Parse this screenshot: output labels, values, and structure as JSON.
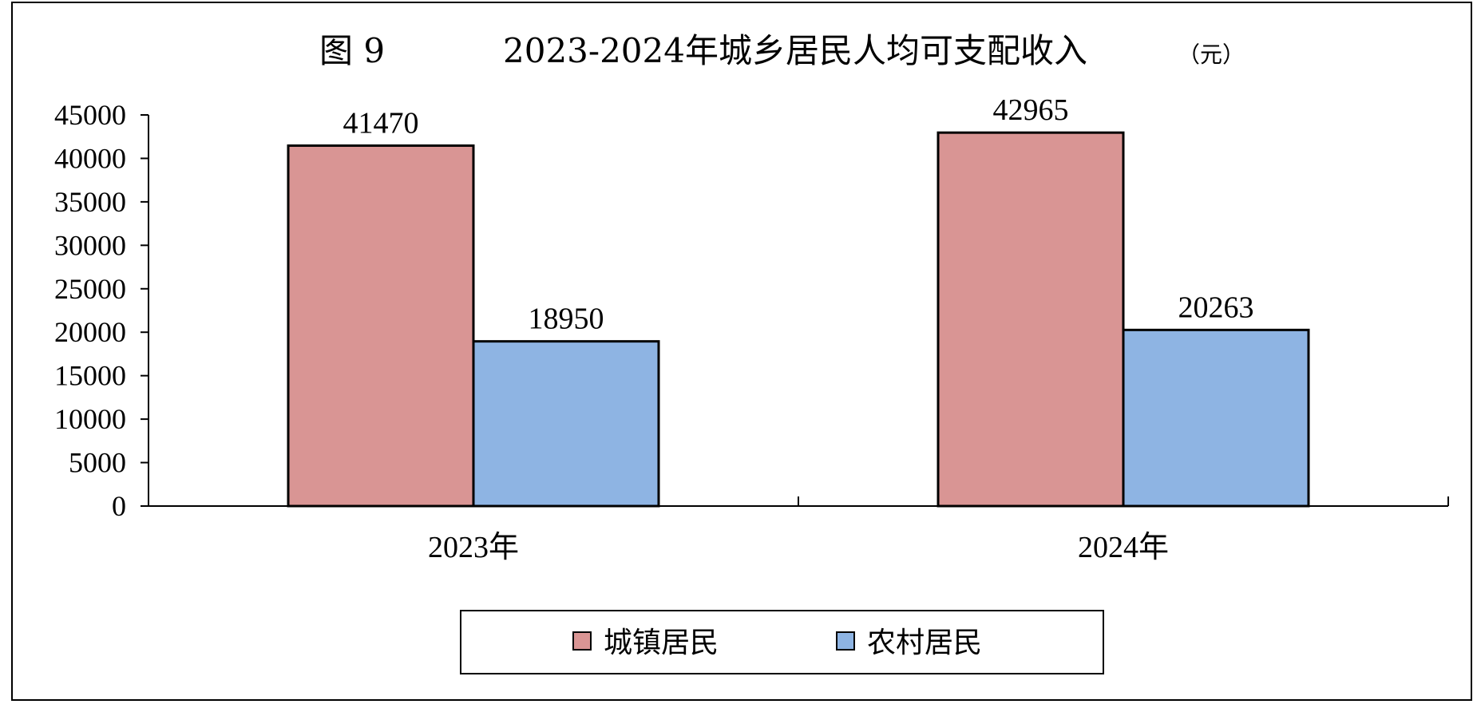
{
  "chart_data": {
    "type": "bar",
    "title": {
      "figure_label": "图 9",
      "text": "2023-2024年城乡居民人均可支配收入",
      "unit": "（元）"
    },
    "categories": [
      "2023年",
      "2024年"
    ],
    "series": [
      {
        "name": "城镇居民",
        "values": [
          41470,
          42965
        ],
        "color": "#D99594"
      },
      {
        "name": "农村居民",
        "values": [
          18950,
          20263
        ],
        "color": "#8EB4E3"
      }
    ],
    "ylim": [
      0,
      45000
    ],
    "yticks": [
      "0",
      "5000",
      "10000",
      "15000",
      "20000",
      "25000",
      "30000",
      "35000",
      "40000",
      "45000"
    ],
    "grid": false,
    "legend_position": "bottom"
  }
}
